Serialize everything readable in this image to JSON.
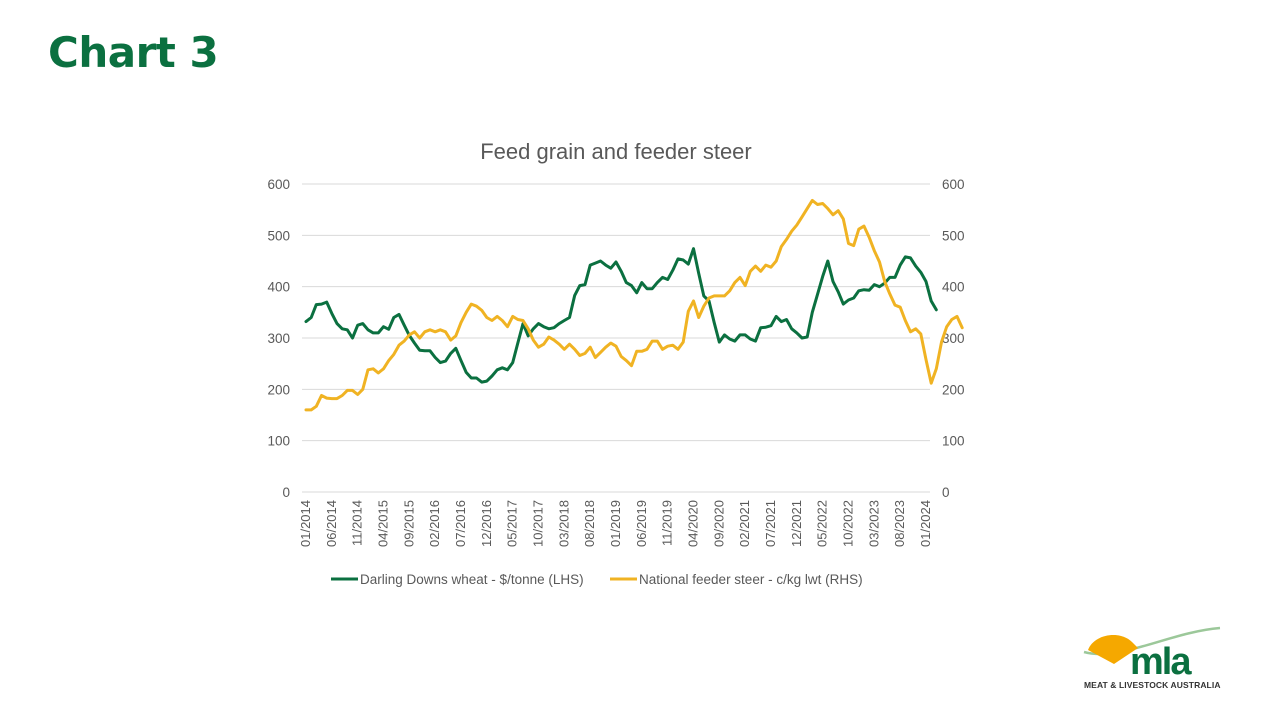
{
  "slide": {
    "title": "Chart 3",
    "logo": {
      "wordmark": "mla",
      "caption": "MEAT & LIVESTOCK AUSTRALIA",
      "colors": {
        "sun": "#f5a800",
        "text": "#0b7040",
        "swoosh": "#9cc89a"
      }
    }
  },
  "chart_data": {
    "type": "line",
    "title": "Feed grain and feeder steer",
    "xlabel": "",
    "ylabel_left": "",
    "ylabel_right": "",
    "ylim_left": [
      0,
      600
    ],
    "ylim_right": [
      0,
      600
    ],
    "yticks_left": [
      "0",
      "100",
      "200",
      "300",
      "400",
      "500",
      "600"
    ],
    "yticks_right": [
      "0",
      "100",
      "200",
      "300",
      "400",
      "500",
      "600"
    ],
    "grid": true,
    "legend_position": "bottom",
    "x_start": "01/2014",
    "x_tick_labels": [
      "01/2014",
      "06/2014",
      "11/2014",
      "04/2015",
      "09/2015",
      "02/2016",
      "07/2016",
      "12/2016",
      "05/2017",
      "10/2017",
      "03/2018",
      "08/2018",
      "01/2019",
      "06/2019",
      "11/2019",
      "04/2020",
      "09/2020",
      "02/2021",
      "07/2021",
      "12/2021",
      "05/2022",
      "10/2022",
      "03/2023",
      "08/2023",
      "01/2024"
    ],
    "x_tick_step_months": 5,
    "series": [
      {
        "name": "Darling Downs wheat - $/tonne (LHS)",
        "axis": "left",
        "color": "#0b7040",
        "values": [
          332,
          340,
          365,
          366,
          370,
          348,
          328,
          318,
          316,
          300,
          325,
          328,
          316,
          310,
          310,
          322,
          317,
          340,
          346,
          325,
          305,
          290,
          276,
          275,
          275,
          262,
          252,
          255,
          270,
          280,
          256,
          233,
          222,
          222,
          214,
          216,
          226,
          238,
          242,
          238,
          252,
          290,
          328,
          304,
          318,
          328,
          322,
          318,
          320,
          328,
          334,
          340,
          383,
          402,
          404,
          442,
          446,
          450,
          442,
          436,
          448,
          430,
          408,
          402,
          388,
          408,
          396,
          396,
          408,
          418,
          414,
          432,
          454,
          452,
          444,
          474,
          426,
          382,
          372,
          330,
          292,
          306,
          298,
          294,
          306,
          306,
          298,
          294,
          320,
          321,
          324,
          342,
          332,
          336,
          318,
          310,
          300,
          302,
          350,
          385,
          420,
          450,
          410,
          390,
          366,
          374,
          378,
          392,
          394,
          393,
          404,
          400,
          407,
          418,
          418,
          442,
          458,
          456,
          440,
          428,
          410,
          372,
          355
        ]
      },
      {
        "name": "National feeder steer - c/kg lwt (RHS)",
        "axis": "right",
        "color": "#f0b323",
        "values": [
          160,
          160,
          167,
          188,
          183,
          182,
          182,
          188,
          198,
          198,
          190,
          200,
          238,
          240,
          232,
          240,
          256,
          268,
          286,
          294,
          306,
          312,
          300,
          312,
          316,
          312,
          316,
          312,
          296,
          304,
          330,
          350,
          366,
          362,
          354,
          340,
          334,
          342,
          334,
          322,
          342,
          336,
          334,
          318,
          296,
          282,
          288,
          302,
          296,
          288,
          278,
          288,
          278,
          266,
          270,
          282,
          262,
          272,
          282,
          290,
          284,
          264,
          256,
          246,
          274,
          274,
          278,
          294,
          294,
          278,
          284,
          286,
          278,
          292,
          352,
          372,
          340,
          362,
          378,
          382,
          382,
          382,
          392,
          408,
          418,
          402,
          430,
          440,
          430,
          442,
          438,
          450,
          478,
          492,
          508,
          520,
          536,
          552,
          568,
          560,
          562,
          552,
          540,
          548,
          532,
          484,
          480,
          512,
          518,
          496,
          470,
          448,
          410,
          386,
          364,
          360,
          334,
          312,
          318,
          308,
          258,
          212,
          240,
          292,
          322,
          336,
          342,
          320
        ]
      }
    ]
  }
}
